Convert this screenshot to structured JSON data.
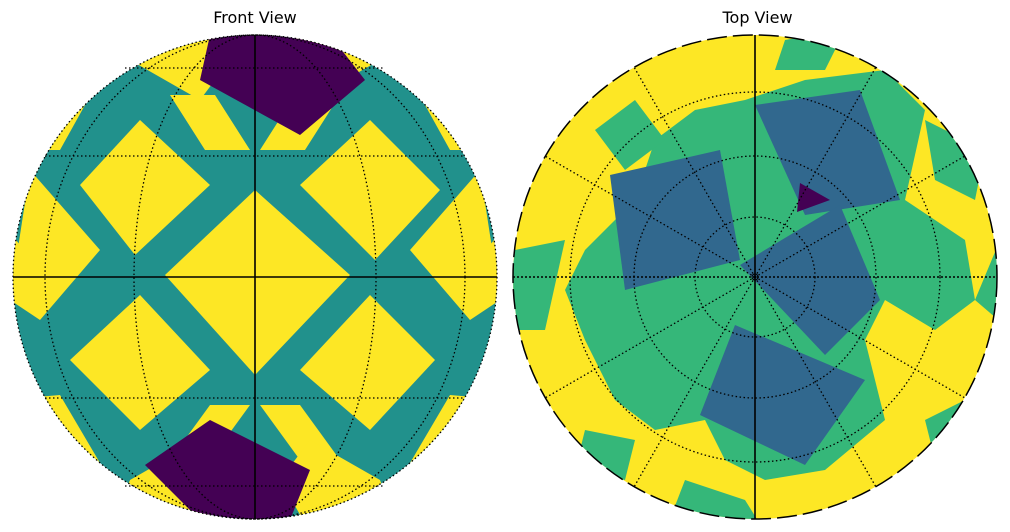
{
  "figure": {
    "panels": [
      {
        "title": "Front View"
      },
      {
        "title": "Top View"
      }
    ],
    "colors": {
      "yellow": "#fde725",
      "teal": "#21918c",
      "green": "#35b779",
      "blue": "#31688e",
      "purple": "#440154",
      "line": "#000000"
    }
  }
}
